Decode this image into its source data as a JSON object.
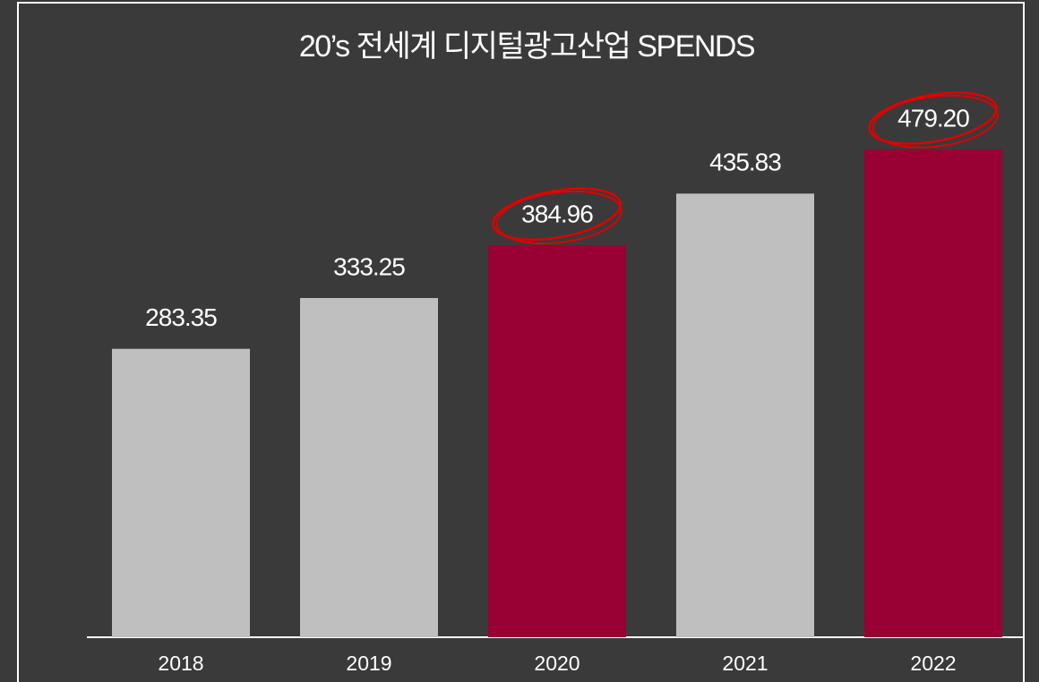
{
  "chart_data": {
    "type": "bar",
    "title": "20’s 전세계 디지털광고산업 SPENDS",
    "categories": [
      "2018",
      "2019",
      "2020",
      "2021",
      "2022"
    ],
    "values": [
      283.35,
      333.25,
      384.96,
      435.83,
      479.2
    ],
    "value_labels": [
      "283.35",
      "333.25",
      "384.96",
      "435.83",
      "479.20"
    ],
    "colors": [
      "#bfbfbf",
      "#bfbfbf",
      "#990033",
      "#bfbfbf",
      "#990033"
    ],
    "accent_color": "#990033"
  }
}
